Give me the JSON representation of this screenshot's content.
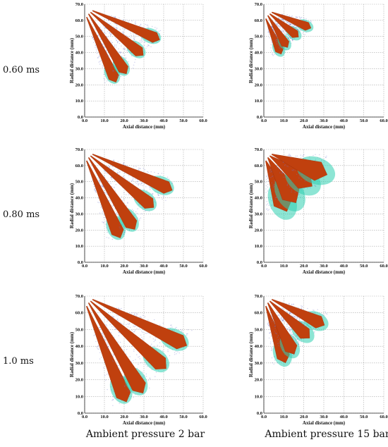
{
  "row_labels": [
    "0.60 ms",
    "0.80 ms",
    "1.0 ms"
  ],
  "column_labels": [
    "Ambient pressure 2 bar",
    "Ambient pressure 15 bar"
  ],
  "colors": {
    "core": "#c0400e",
    "core_dark": "#8f2a08",
    "droplet_mid": "#2fd0b0",
    "droplet_outer": "#6f73c8",
    "grid": "#aaaaaa"
  },
  "chart_data": [
    {
      "type": "scatter",
      "xlabel": "Axial distance (mm)",
      "ylabel": "Radial distance (mm)",
      "xlim": [
        0,
        60
      ],
      "ylim": [
        0,
        70
      ],
      "xticks": [
        "0.0",
        "10.0",
        "20.0",
        "30.0",
        "40.0",
        "50.0",
        "60.0"
      ],
      "yticks": [
        "0.0",
        "10.0",
        "20.0",
        "30.0",
        "40.0",
        "50.0",
        "60.0",
        "70.0"
      ],
      "grid": true,
      "series": [
        {
          "origin": [
            1,
            62
          ],
          "tip": [
            15,
            24
          ],
          "width": 5
        },
        {
          "origin": [
            2,
            64
          ],
          "tip": [
            20,
            29
          ],
          "width": 5
        },
        {
          "origin": [
            3,
            65
          ],
          "tip": [
            28,
            40
          ],
          "width": 5
        },
        {
          "origin": [
            4,
            66
          ],
          "tip": [
            36,
            49
          ],
          "width": 5
        }
      ]
    },
    {
      "type": "scatter",
      "xlabel": "Axial distance (mm)",
      "ylabel": "Radial distance (mm)",
      "xlim": [
        0,
        60
      ],
      "ylim": [
        0,
        70
      ],
      "xticks": [
        "0.0",
        "10.0",
        "20.0",
        "30.0",
        "40.0",
        "50.0",
        "60.0"
      ],
      "yticks": [
        "0.0",
        "10.0",
        "20.0",
        "30.0",
        "40.0",
        "50.0",
        "60.0",
        "70.0"
      ],
      "grid": true,
      "series": [
        {
          "origin": [
            1,
            61
          ],
          "tip": [
            8,
            41
          ],
          "width": 4
        },
        {
          "origin": [
            2,
            63
          ],
          "tip": [
            11,
            45
          ],
          "width": 4
        },
        {
          "origin": [
            3,
            64
          ],
          "tip": [
            16,
            51
          ],
          "width": 4
        },
        {
          "origin": [
            4,
            65
          ],
          "tip": [
            22,
            56
          ],
          "width": 4
        }
      ]
    },
    {
      "type": "scatter",
      "xlabel": "Axial distance (mm)",
      "ylabel": "Radial distance (mm)",
      "xlim": [
        0,
        60
      ],
      "ylim": [
        0,
        70
      ],
      "xticks": [
        "0.0",
        "10.0",
        "20.0",
        "30.0",
        "40.0",
        "50.0",
        "60.0"
      ],
      "yticks": [
        "0.0",
        "10.0",
        "20.0",
        "30.0",
        "40.0",
        "50.0",
        "60.0",
        "70.0"
      ],
      "grid": true,
      "series": [
        {
          "origin": [
            1,
            63
          ],
          "tip": [
            17,
            18
          ],
          "width": 6
        },
        {
          "origin": [
            2,
            65
          ],
          "tip": [
            24,
            23
          ],
          "width": 6
        },
        {
          "origin": [
            3,
            66
          ],
          "tip": [
            33,
            36
          ],
          "width": 6
        },
        {
          "origin": [
            4,
            67
          ],
          "tip": [
            42,
            46
          ],
          "width": 6
        }
      ]
    },
    {
      "type": "scatter",
      "xlabel": "Axial distance (mm)",
      "ylabel": "Radial distance (mm)",
      "xlim": [
        0,
        60
      ],
      "ylim": [
        0,
        70
      ],
      "xticks": [
        "0.0",
        "10.0",
        "20.0",
        "30.0",
        "40.0",
        "50.0",
        "60.0"
      ],
      "yticks": [
        "0.0",
        "10.0",
        "20.0",
        "30.0",
        "40.0",
        "50.0",
        "60.0",
        "70.0"
      ],
      "grid": true,
      "series": [
        {
          "origin": [
            1,
            63
          ],
          "tip": [
            10,
            36
          ],
          "width": 9
        },
        {
          "origin": [
            2,
            65
          ],
          "tip": [
            14,
            41
          ],
          "width": 9
        },
        {
          "origin": [
            3,
            66
          ],
          "tip": [
            21,
            50
          ],
          "width": 9
        },
        {
          "origin": [
            4,
            67
          ],
          "tip": [
            28,
            56
          ],
          "width": 9
        }
      ]
    },
    {
      "type": "scatter",
      "xlabel": "Axial distance (mm)",
      "ylabel": "Radial distance (mm)",
      "xlim": [
        0,
        60
      ],
      "ylim": [
        0,
        70
      ],
      "xticks": [
        "0.0",
        "10.0",
        "20.0",
        "30.0",
        "40.0",
        "50.0",
        "60.0"
      ],
      "yticks": [
        "0.0",
        "10.0",
        "20.0",
        "30.0",
        "40.0",
        "50.0",
        "60.0",
        "70.0"
      ],
      "grid": true,
      "series": [
        {
          "origin": [
            1,
            64
          ],
          "tip": [
            20,
            10
          ],
          "width": 7
        },
        {
          "origin": [
            2,
            66
          ],
          "tip": [
            28,
            15
          ],
          "width": 7
        },
        {
          "origin": [
            3,
            67
          ],
          "tip": [
            39,
            29
          ],
          "width": 7
        },
        {
          "origin": [
            4,
            68
          ],
          "tip": [
            49,
            42
          ],
          "width": 7
        }
      ]
    },
    {
      "type": "scatter",
      "xlabel": "Axial distance (mm)",
      "ylabel": "Radial distance (mm)",
      "xlim": [
        0,
        60
      ],
      "ylim": [
        0,
        70
      ],
      "xticks": [
        "0.0",
        "10.0",
        "20.0",
        "30.0",
        "40.0",
        "50.0",
        "60.0"
      ],
      "yticks": [
        "0.0",
        "10.0",
        "20.0",
        "30.0",
        "40.0",
        "50.0",
        "60.0",
        "70.0"
      ],
      "grid": true,
      "series": [
        {
          "origin": [
            1,
            64
          ],
          "tip": [
            10,
            33
          ],
          "width": 6
        },
        {
          "origin": [
            2,
            66
          ],
          "tip": [
            14,
            38
          ],
          "width": 6
        },
        {
          "origin": [
            3,
            67
          ],
          "tip": [
            21,
            47
          ],
          "width": 6
        },
        {
          "origin": [
            4,
            68
          ],
          "tip": [
            28,
            54
          ],
          "width": 6
        }
      ]
    }
  ]
}
